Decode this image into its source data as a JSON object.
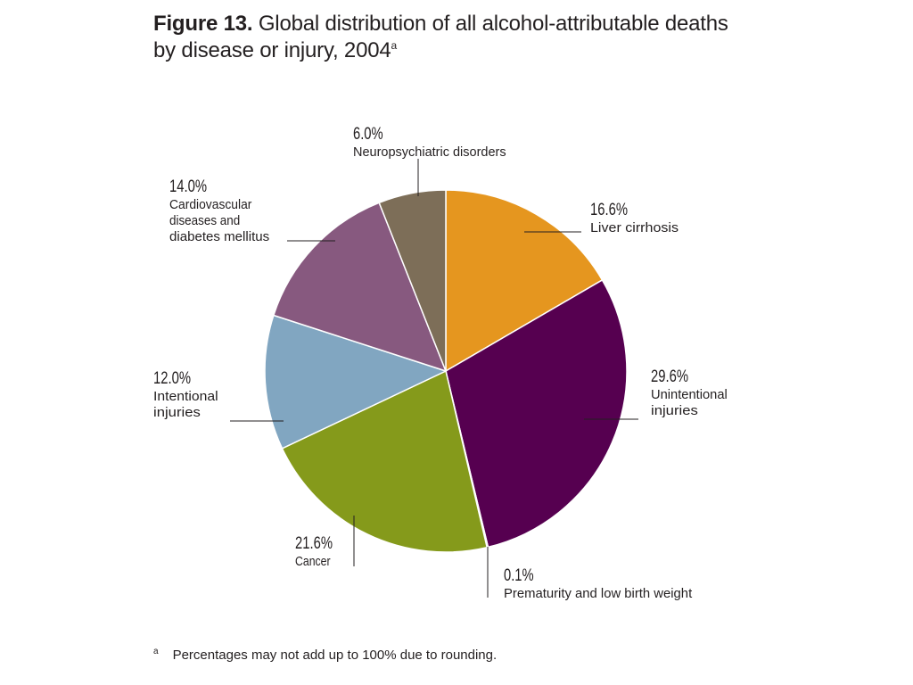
{
  "title": {
    "figure_label": "Figure 13.",
    "line1": " Global distribution of all alcohol-attributable deaths",
    "line2": "by disease or injury, 2004",
    "superscript": "a"
  },
  "chart_data": {
    "type": "pie",
    "start_angle_deg": 0,
    "direction": "clockwise",
    "slices": [
      {
        "label": "Liver cirrhosis",
        "label_lines": [
          "Liver cirrhosis"
        ],
        "value": 16.6,
        "value_label": "16.6%",
        "color": "#e5961f"
      },
      {
        "label": "Unintentional injuries",
        "label_lines": [
          "Unintentional",
          "injuries"
        ],
        "value": 29.6,
        "value_label": "29.6%",
        "color": "#560050"
      },
      {
        "label": "Prematurity and low birth weight",
        "label_lines": [
          "Prematurity and low birth weight"
        ],
        "value": 0.1,
        "value_label": "0.1%",
        "color": "#b8b8b8"
      },
      {
        "label": "Cancer",
        "label_lines": [
          "Cancer"
        ],
        "value": 21.6,
        "value_label": "21.6%",
        "color": "#859a1b"
      },
      {
        "label": "Intentional injuries",
        "label_lines": [
          "Intentional",
          "injuries"
        ],
        "value": 12.0,
        "value_label": "12.0%",
        "color": "#81a6c1"
      },
      {
        "label": "Cardiovascular diseases and diabetes mellitus",
        "label_lines": [
          "Cardiovascular",
          "diseases and",
          "diabetes mellitus"
        ],
        "value": 14.0,
        "value_label": "14.0%",
        "color": "#87597f"
      },
      {
        "label": "Neuropsychiatric disorders",
        "label_lines": [
          "Neuropsychiatric disorders"
        ],
        "value": 6.0,
        "value_label": "6.0%",
        "color": "#7d6e58"
      }
    ]
  },
  "footnote": {
    "marker": "a",
    "text": "Percentages may not add up to 100% due to rounding."
  }
}
